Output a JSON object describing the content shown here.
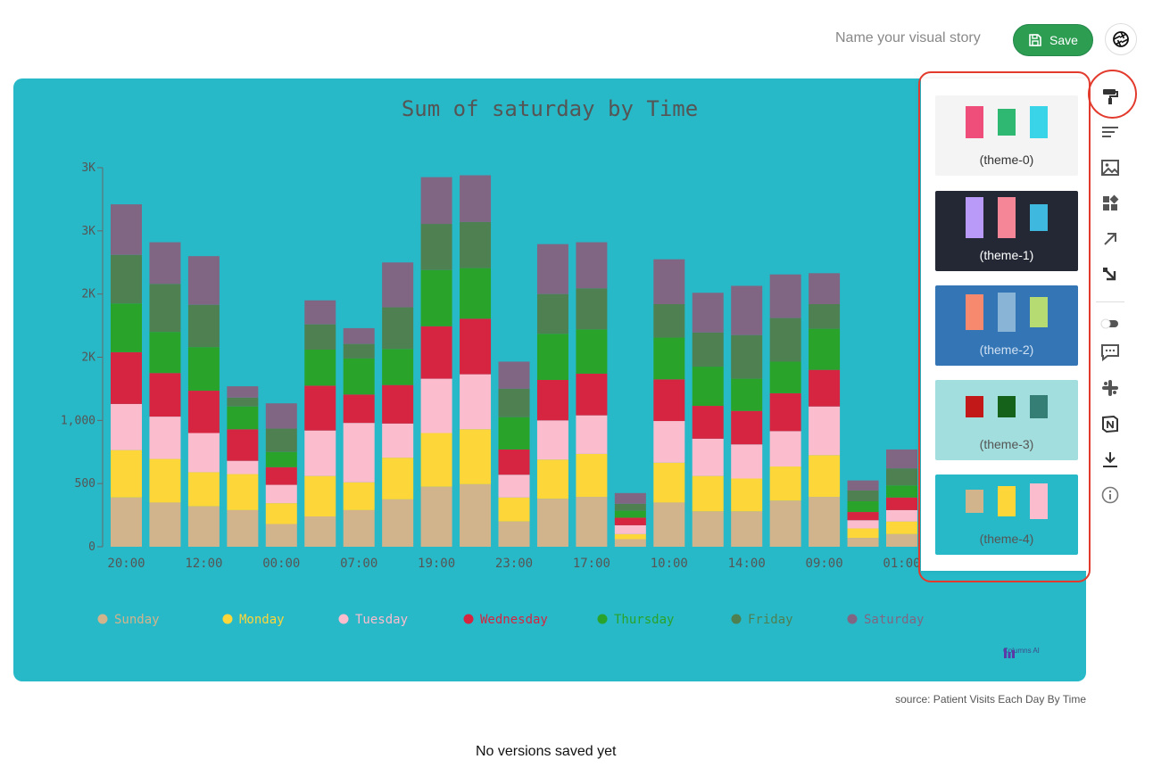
{
  "header": {
    "story_name_placeholder": "Name your visual story",
    "save_label": "Save"
  },
  "chart_data": {
    "type": "bar",
    "stacked": true,
    "title": "Sum of saturday by Time",
    "y_ticks": [
      "0",
      "500",
      "1,000",
      "2K",
      "2K",
      "3K",
      "3K"
    ],
    "ylim": [
      0,
      3000
    ],
    "x_tick_labels": [
      "20:00",
      "12:00",
      "00:00",
      "07:00",
      "19:00",
      "23:00",
      "17:00",
      "10:00",
      "14:00",
      "09:00",
      "01:00"
    ],
    "legend_position": "bottom",
    "series": [
      {
        "name": "Sunday",
        "color": "#d2b48c",
        "values": [
          390,
          350,
          320,
          290,
          180,
          240,
          290,
          375,
          475,
          495,
          200,
          380,
          395,
          60,
          350,
          280,
          280,
          365,
          395,
          70,
          100
        ]
      },
      {
        "name": "Monday",
        "color": "#fdd63a",
        "values": [
          375,
          345,
          270,
          285,
          165,
          320,
          220,
          330,
          425,
          435,
          190,
          310,
          340,
          40,
          315,
          280,
          260,
          270,
          330,
          75,
          100
        ]
      },
      {
        "name": "Tuesday",
        "color": "#fbbccd",
        "values": [
          365,
          335,
          310,
          105,
          145,
          360,
          470,
          270,
          430,
          435,
          180,
          310,
          305,
          70,
          330,
          295,
          270,
          280,
          385,
          65,
          90
        ]
      },
      {
        "name": "Wednesday",
        "color": "#d62540",
        "values": [
          410,
          345,
          335,
          250,
          140,
          355,
          225,
          305,
          415,
          440,
          200,
          320,
          330,
          60,
          330,
          260,
          265,
          300,
          290,
          65,
          100
        ]
      },
      {
        "name": "Thursday",
        "color": "#29a329",
        "values": [
          385,
          325,
          345,
          180,
          120,
          285,
          285,
          285,
          445,
          400,
          255,
          365,
          350,
          55,
          330,
          310,
          255,
          250,
          325,
          85,
          95
        ]
      },
      {
        "name": "Friday",
        "color": "#4e8052",
        "values": [
          385,
          380,
          335,
          70,
          185,
          200,
          115,
          330,
          365,
          365,
          225,
          315,
          325,
          55,
          265,
          270,
          345,
          345,
          195,
          85,
          135
        ]
      },
      {
        "name": "Saturday",
        "color": "#806682",
        "values": [
          400,
          330,
          385,
          90,
          200,
          190,
          125,
          355,
          370,
          370,
          215,
          395,
          365,
          85,
          355,
          315,
          390,
          345,
          245,
          80,
          150
        ]
      }
    ]
  },
  "brand_text": "Columns AI",
  "source_text": "source: Patient Visits Each Day By Time",
  "versions_text": "No versions saved yet",
  "themes": [
    {
      "label": "(theme-0)",
      "bg": "#f4f4f4",
      "text": "#333333",
      "swatches": [
        "#ef4e7b",
        "#2eb872",
        "#3ad4e8"
      ]
    },
    {
      "label": "(theme-1)",
      "bg": "#232834",
      "text": "#ffffff",
      "swatches": [
        "#b99af8",
        "#f58697",
        "#3fb8e0"
      ]
    },
    {
      "label": "(theme-2)",
      "bg": "#3475b5",
      "text": "#cfe0f2",
      "swatches": [
        "#f78a6e",
        "#8ab4d6",
        "#b6db73"
      ]
    },
    {
      "label": "(theme-3)",
      "bg": "#a2dedd",
      "text": "#555555",
      "swatches": [
        "#c31818",
        "#15621a",
        "#347e76"
      ]
    },
    {
      "label": "(theme-4)",
      "bg": "#28b9c8",
      "text": "#555555",
      "swatches": [
        "#d2b48c",
        "#fdd63a",
        "#fbbccd"
      ]
    }
  ],
  "toolbar_icons": [
    "paint-roller-icon",
    "text-lines-icon",
    "image-icon",
    "widgets-icon",
    "arrow-up-right-icon",
    "arrow-down-right-icon",
    "toggle-icon",
    "comment-icon",
    "slack-icon",
    "notion-icon",
    "download-icon",
    "info-icon"
  ]
}
